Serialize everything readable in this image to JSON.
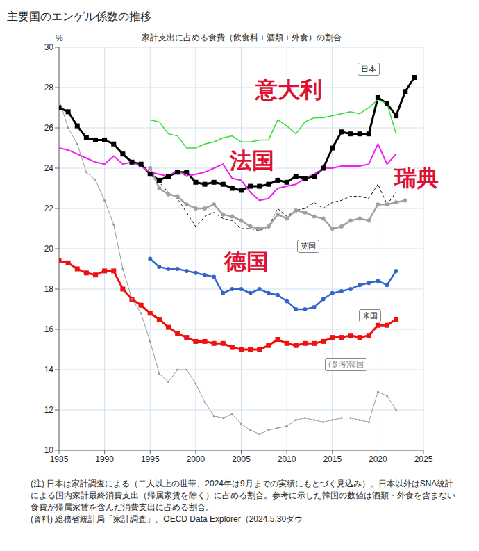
{
  "chart_data": {
    "type": "line",
    "title": "主要国のエンゲル係数の推移",
    "subtitle": "家計支出に占める食費（飲食料＋酒類＋外食）の割合",
    "y_label": "%",
    "notes": "(注) 日本は家計調査による（二人以上の世帯、2024年は9月までの実績にもとづく見込み）。日本以外はSNA統計による国内家計最終消費支出（帰属家賃を除く）に占める割合。参考に示した韓国の数値は酒類・外食を含まない食費が帰属家賃を含んだ消費支出に占める割合。",
    "source": "(資料) 総務省統計局「家計調査」、OECD Data Explorer（2024.5.30ダウ",
    "grid": true,
    "xlim": [
      1985,
      2025
    ],
    "xticks": [
      1985,
      1990,
      1995,
      2000,
      2005,
      2010,
      2015,
      2020,
      2025
    ],
    "ylim": [
      10,
      30
    ],
    "yticks": [
      10,
      12,
      14,
      16,
      18,
      20,
      22,
      24,
      26,
      28,
      30
    ],
    "x": [
      1985,
      1986,
      1987,
      1988,
      1989,
      1990,
      1991,
      1992,
      1993,
      1994,
      1995,
      1996,
      1997,
      1998,
      1999,
      2000,
      2001,
      2002,
      2003,
      2004,
      2005,
      2006,
      2007,
      2008,
      2009,
      2010,
      2011,
      2012,
      2013,
      2014,
      2015,
      2016,
      2017,
      2018,
      2019,
      2020,
      2021,
      2022,
      2023,
      2024
    ],
    "series": [
      {
        "name": "日本",
        "color": "#000000",
        "marker": "square",
        "line_style": "solid",
        "values": [
          27.0,
          26.8,
          26.1,
          25.5,
          25.4,
          25.4,
          25.2,
          24.7,
          24.3,
          24.2,
          23.7,
          23.4,
          23.6,
          23.8,
          23.8,
          23.3,
          23.2,
          23.3,
          23.2,
          23.0,
          22.9,
          23.1,
          23.1,
          23.2,
          23.4,
          23.3,
          23.6,
          23.5,
          23.6,
          24.0,
          25.0,
          25.8,
          25.7,
          25.7,
          25.7,
          27.5,
          27.2,
          26.6,
          27.8,
          28.5
        ]
      },
      {
        "name": "意大利",
        "color": "#33dd33",
        "marker": "none",
        "line_style": "solid",
        "values": [
          null,
          null,
          null,
          null,
          null,
          null,
          null,
          null,
          null,
          null,
          26.4,
          26.3,
          25.7,
          25.6,
          25.0,
          25.0,
          25.2,
          25.3,
          25.5,
          25.6,
          25.3,
          25.3,
          25.4,
          25.4,
          26.4,
          26.1,
          25.7,
          26.3,
          26.5,
          26.5,
          26.6,
          26.7,
          26.8,
          26.7,
          27.0,
          27.4,
          27.2,
          25.7,
          null,
          null
        ]
      },
      {
        "name": "法国",
        "color": "#ee22ee",
        "marker": "none",
        "line_style": "solid",
        "values": [
          25.0,
          24.9,
          24.7,
          24.5,
          24.3,
          24.2,
          24.6,
          24.2,
          24.3,
          24.1,
          23.8,
          23.7,
          23.6,
          23.9,
          23.6,
          23.7,
          23.8,
          24.0,
          24.2,
          23.5,
          23.4,
          22.8,
          22.4,
          22.5,
          23.0,
          23.1,
          23.2,
          23.5,
          23.7,
          24.0,
          24.0,
          24.1,
          24.1,
          24.1,
          24.2,
          25.2,
          24.2,
          24.7,
          null,
          null
        ]
      },
      {
        "name": "瑞典",
        "color": "#000000",
        "marker": "none",
        "line_style": "dashed",
        "values": [
          null,
          null,
          null,
          null,
          null,
          null,
          null,
          null,
          null,
          null,
          24.0,
          23.3,
          22.8,
          22.5,
          21.8,
          21.1,
          21.6,
          21.8,
          21.5,
          21.4,
          21.0,
          21.0,
          20.9,
          21.1,
          22.0,
          21.6,
          21.9,
          22.0,
          22.3,
          22.0,
          22.3,
          22.4,
          22.6,
          22.6,
          22.5,
          23.2,
          22.2,
          22.8,
          null,
          null
        ]
      },
      {
        "name": "英国",
        "color": "#a0a0a0",
        "marker": "circle",
        "line_style": "solid",
        "values": [
          null,
          null,
          null,
          null,
          null,
          null,
          null,
          null,
          null,
          null,
          24.0,
          23.0,
          22.7,
          22.6,
          22.2,
          22.0,
          22.0,
          22.2,
          21.7,
          21.6,
          21.4,
          21.1,
          21.0,
          21.1,
          21.7,
          21.5,
          21.9,
          21.8,
          21.6,
          21.5,
          21.0,
          21.1,
          21.4,
          21.5,
          21.4,
          22.2,
          22.2,
          22.3,
          22.4,
          null
        ]
      },
      {
        "name": "德国",
        "color": "#3366cc",
        "marker": "circle",
        "line_style": "solid",
        "values": [
          null,
          null,
          null,
          null,
          null,
          null,
          null,
          null,
          null,
          null,
          19.5,
          19.1,
          19.0,
          19.0,
          18.9,
          18.8,
          18.7,
          18.6,
          17.8,
          18.0,
          18.0,
          17.8,
          18.0,
          17.8,
          17.7,
          17.4,
          17.0,
          17.0,
          17.1,
          17.5,
          17.8,
          17.9,
          18.0,
          18.2,
          18.3,
          18.4,
          18.2,
          18.9,
          null,
          null
        ]
      },
      {
        "name": "米国",
        "color": "#ee1111",
        "marker": "square",
        "line_style": "solid",
        "values": [
          19.4,
          19.3,
          19.0,
          18.8,
          18.7,
          18.9,
          18.9,
          18.0,
          17.5,
          17.2,
          16.8,
          16.5,
          16.1,
          15.8,
          15.6,
          15.4,
          15.4,
          15.3,
          15.3,
          15.1,
          15.0,
          15.0,
          15.0,
          15.2,
          15.5,
          15.3,
          15.2,
          15.3,
          15.3,
          15.4,
          15.6,
          15.6,
          15.7,
          15.6,
          15.7,
          16.2,
          16.2,
          16.5,
          null,
          null
        ]
      },
      {
        "name": "(参考)韓国",
        "color": "#999999",
        "marker": "dot",
        "line_style": "solid",
        "values": [
          27.4,
          26.0,
          25.2,
          23.8,
          23.4,
          22.4,
          21.2,
          19.0,
          17.5,
          16.8,
          15.4,
          13.8,
          13.4,
          14.0,
          14.0,
          13.3,
          12.4,
          11.7,
          11.6,
          11.8,
          11.3,
          11.0,
          10.8,
          11.0,
          11.1,
          11.2,
          11.5,
          11.6,
          11.5,
          11.4,
          11.5,
          11.6,
          11.6,
          11.5,
          11.4,
          12.9,
          12.7,
          12.0,
          null,
          null
        ]
      }
    ]
  }
}
